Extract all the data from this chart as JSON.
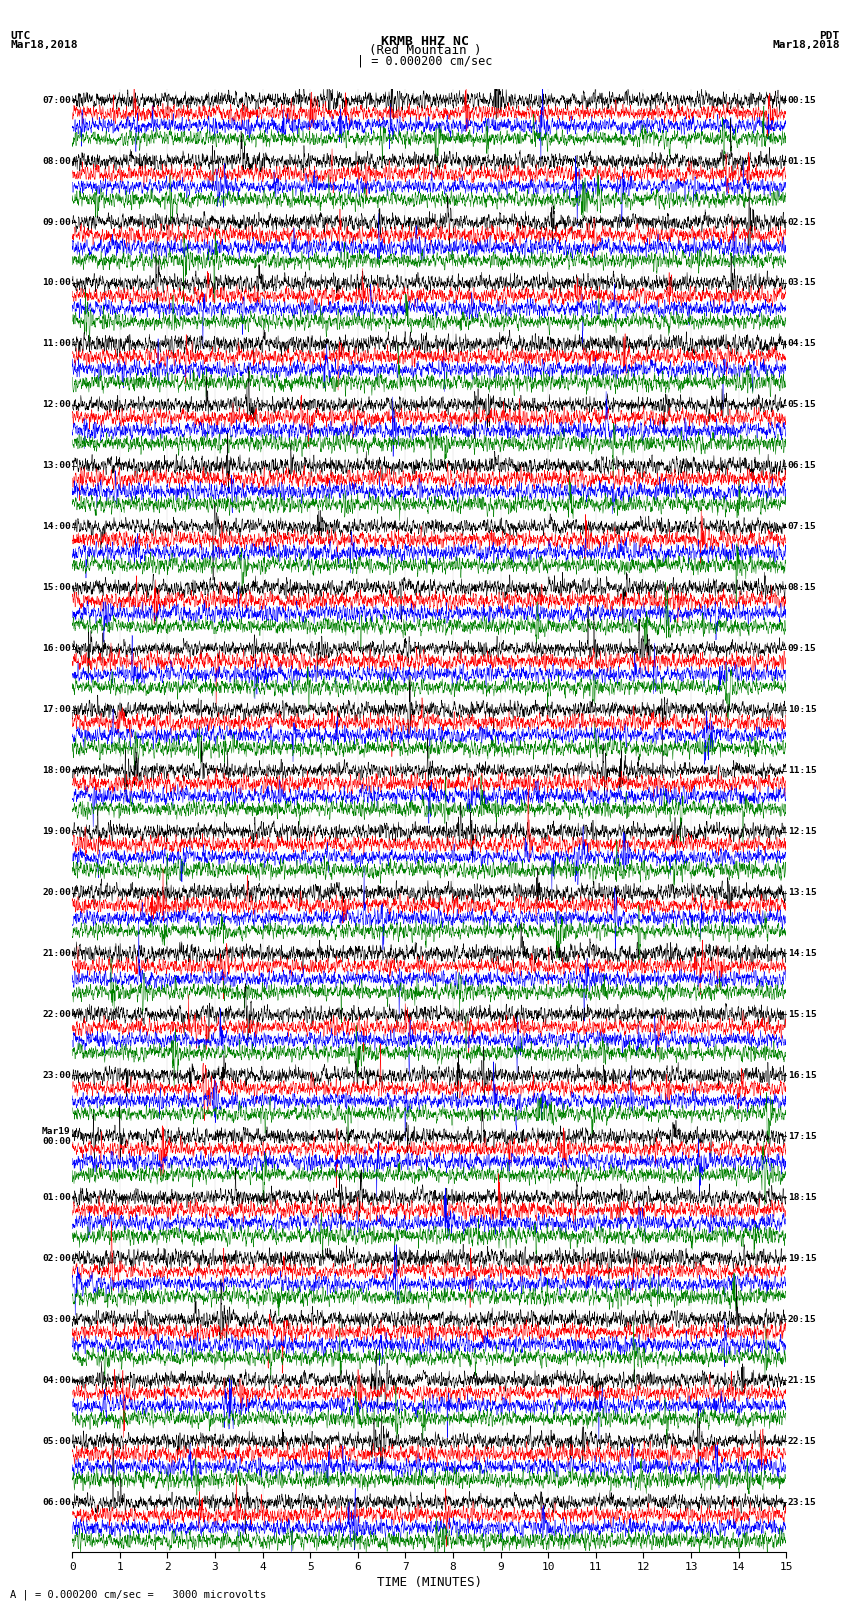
{
  "title_line1": "KRMB HHZ NC",
  "title_line2": "(Red Mountain )",
  "scale_bar_text": "| = 0.000200 cm/sec",
  "left_label_line1": "UTC",
  "left_label_line2": "Mar18,2018",
  "right_label_line1": "PDT",
  "right_label_line2": "Mar18,2018",
  "bottom_label": "TIME (MINUTES)",
  "footnote": "A | = 0.000200 cm/sec =   3000 microvolts",
  "left_times": [
    "07:00",
    "08:00",
    "09:00",
    "10:00",
    "11:00",
    "12:00",
    "13:00",
    "14:00",
    "15:00",
    "16:00",
    "17:00",
    "18:00",
    "19:00",
    "20:00",
    "21:00",
    "22:00",
    "23:00",
    "Mar19\n00:00",
    "01:00",
    "02:00",
    "03:00",
    "04:00",
    "05:00",
    "06:00"
  ],
  "right_times": [
    "00:15",
    "01:15",
    "02:15",
    "03:15",
    "04:15",
    "05:15",
    "06:15",
    "07:15",
    "08:15",
    "09:15",
    "10:15",
    "11:15",
    "12:15",
    "13:15",
    "14:15",
    "15:15",
    "16:15",
    "17:15",
    "18:15",
    "19:15",
    "20:15",
    "21:15",
    "22:15",
    "23:15"
  ],
  "n_rows": 24,
  "traces_per_row": 4,
  "colors": [
    "black",
    "red",
    "blue",
    "green"
  ],
  "xlim": [
    0,
    15
  ],
  "xticks": [
    0,
    1,
    2,
    3,
    4,
    5,
    6,
    7,
    8,
    9,
    10,
    11,
    12,
    13,
    14,
    15
  ],
  "background": "white",
  "fig_width": 8.5,
  "fig_height": 16.13,
  "dpi": 100
}
